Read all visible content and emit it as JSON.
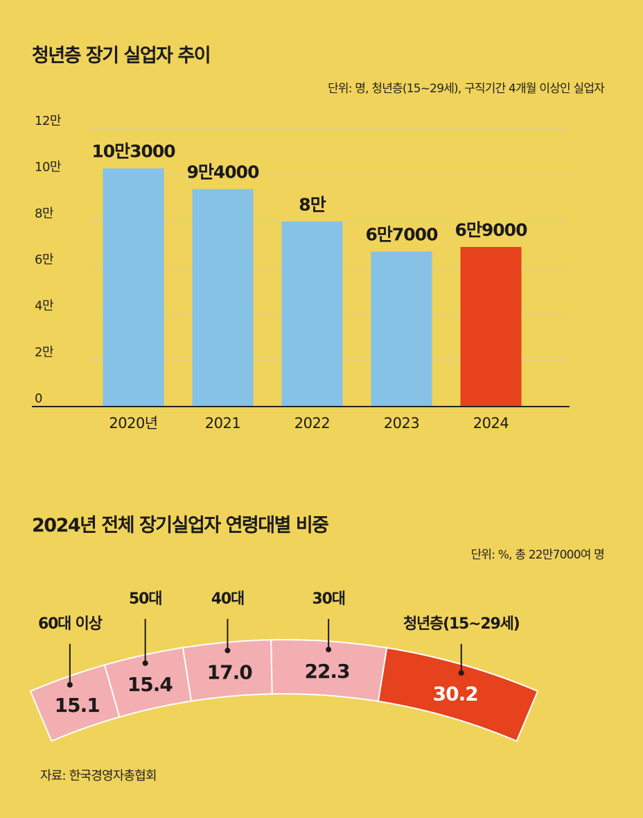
{
  "chart_data": [
    {
      "type": "bar",
      "title": "청년층 장기 실업자 추이",
      "unit_note": "단위: 명, 청년층(15~29세), 구직기간 4개월 이상인 실업자",
      "categories": [
        "2020년",
        "2021",
        "2022",
        "2023",
        "2024"
      ],
      "values": [
        103000,
        94000,
        80000,
        67000,
        69000
      ],
      "value_labels": [
        "10만3000",
        "9만4000",
        "8만",
        "6만7000",
        "6만9000"
      ],
      "ylim": [
        0,
        120000
      ],
      "yticks": [
        0,
        20000,
        40000,
        60000,
        80000,
        100000,
        120000
      ],
      "ytick_labels": [
        "0",
        "2만",
        "4만",
        "6만",
        "8만",
        "10만",
        "12만"
      ],
      "grid": true,
      "highlight_index": 4,
      "colors": {
        "bar": "#86c1e6",
        "highlight": "#e5421d"
      }
    },
    {
      "type": "pie",
      "title": "2024년 전체 장기실업자 연령대별 비중",
      "unit_note": "단위: %, 총 22만7000여 명",
      "segments": [
        {
          "label": "60대 이상",
          "value": 15.1,
          "value_label": "15.1"
        },
        {
          "label": "50대",
          "value": 15.4,
          "value_label": "15.4"
        },
        {
          "label": "40대",
          "value": 17.0,
          "value_label": "17.0"
        },
        {
          "label": "30대",
          "value": 22.3,
          "value_label": "22.3"
        },
        {
          "label": "청년층(15~29세)",
          "value": 30.2,
          "value_label": "30.2"
        }
      ],
      "highlight_index": 4,
      "colors": {
        "segment": "#f3aeb1",
        "highlight": "#e5421d",
        "divider": "#ffffff",
        "highlight_text": "#ffffff"
      }
    }
  ],
  "source": "자료: 한국경영자총협회"
}
